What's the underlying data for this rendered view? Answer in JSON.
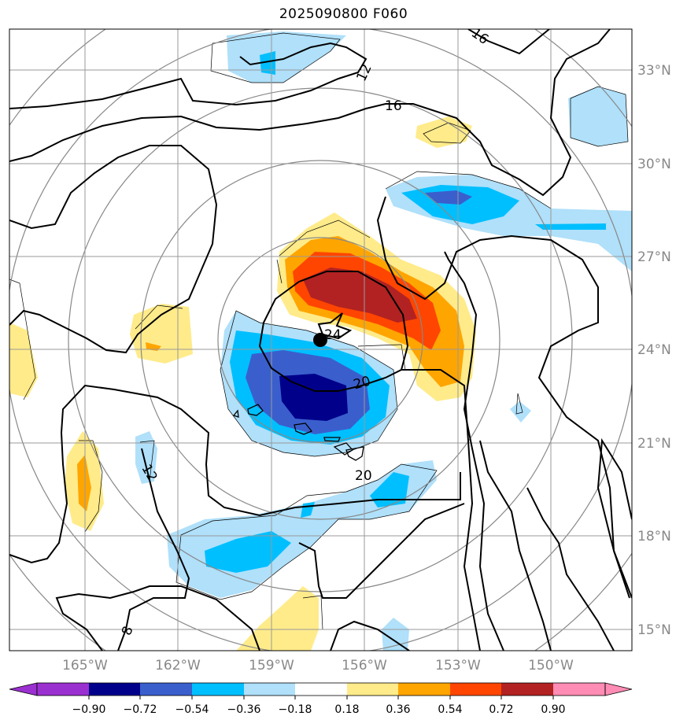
{
  "title": "2025090800 F060",
  "map": {
    "lat_ticks": [
      "33°N",
      "30°N",
      "27°N",
      "24°N",
      "21°N",
      "18°N",
      "15°N"
    ],
    "lon_ticks": [
      "165°W",
      "162°W",
      "159°W",
      "156°W",
      "153°W",
      "150°W"
    ],
    "contour_labels": [
      "16",
      "12",
      "16",
      "24",
      "20",
      "12",
      "20",
      "8"
    ],
    "storm_center": "filled-circle-marker"
  },
  "colorbar": {
    "levels": [
      "−0.90",
      "−0.72",
      "−0.54",
      "−0.36",
      "−0.18",
      "0.18",
      "0.36",
      "0.54",
      "0.72",
      "0.90"
    ],
    "colors": [
      "#9b30d0",
      "#00008b",
      "#3a5fcd",
      "#00bfff",
      "#b0e0fa",
      "#ffffff",
      "#ffeb8a",
      "#ffa500",
      "#ff4500",
      "#b22222",
      "#ff8cb4"
    ]
  },
  "colors": {
    "strong_neg": "#00008b",
    "mid_neg": "#3a5fcd",
    "neg": "#00bfff",
    "weak_neg": "#b0e0fa",
    "weak_pos": "#ffeb8a",
    "pos": "#ffa500",
    "mid_pos": "#ff4500",
    "strong_pos": "#b22222",
    "grid": "#999999",
    "range_ring": "#888888"
  }
}
